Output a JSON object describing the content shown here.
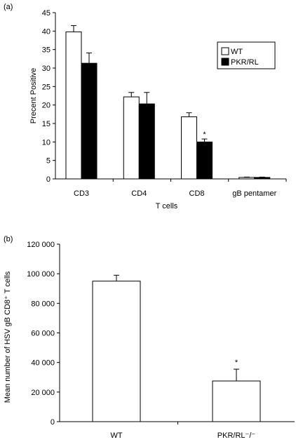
{
  "chart_data": [
    {
      "type": "bar",
      "panel_label": "(a)",
      "categories": [
        "CD3",
        "CD4",
        "CD8",
        "gB pentamer"
      ],
      "series": [
        {
          "name": "WT",
          "color": "#ffffff",
          "values": [
            39.8,
            22.2,
            16.8,
            0.4
          ],
          "errors": [
            1.7,
            1.2,
            1.1,
            0.1
          ]
        },
        {
          "name": "PKR/RL",
          "color": "#000000",
          "values": [
            31.3,
            20.3,
            10.0,
            0.4
          ],
          "errors": [
            2.8,
            3.1,
            0.8,
            0.1
          ]
        }
      ],
      "xlabel": "T cells",
      "ylabel": "Precent Positive",
      "ylim": [
        0,
        45
      ],
      "yticks": [
        "0",
        "5",
        "10",
        "15",
        "20",
        "25",
        "30",
        "35",
        "40",
        "45"
      ],
      "annotations": [
        {
          "category": "CD8",
          "series": "PKR/RL",
          "text": "*"
        }
      ],
      "legend": "top-right",
      "grid": false
    },
    {
      "type": "bar",
      "panel_label": "(b)",
      "categories": [
        "WT",
        "PKR/RL⁻/⁻"
      ],
      "values": [
        95000,
        27500
      ],
      "errors": [
        4000,
        8000
      ],
      "color": "#ffffff",
      "ylabel": "Mean number of HSV gB CD8⁺ T cells",
      "ylim": [
        0,
        120000
      ],
      "yticks": [
        "0",
        "20 000",
        "40 000",
        "60 000",
        "80 000",
        "100 000",
        "120 000"
      ],
      "annotations": [
        {
          "category": "PKR/RL⁻/⁻",
          "text": "*"
        }
      ],
      "grid": false
    }
  ]
}
